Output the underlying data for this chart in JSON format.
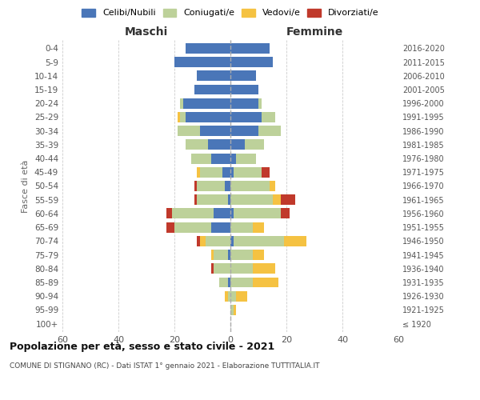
{
  "age_groups": [
    "100+",
    "95-99",
    "90-94",
    "85-89",
    "80-84",
    "75-79",
    "70-74",
    "65-69",
    "60-64",
    "55-59",
    "50-54",
    "45-49",
    "40-44",
    "35-39",
    "30-34",
    "25-29",
    "20-24",
    "15-19",
    "10-14",
    "5-9",
    "0-4"
  ],
  "birth_years": [
    "≤ 1920",
    "1921-1925",
    "1926-1930",
    "1931-1935",
    "1936-1940",
    "1941-1945",
    "1946-1950",
    "1951-1955",
    "1956-1960",
    "1961-1965",
    "1966-1970",
    "1971-1975",
    "1976-1980",
    "1981-1985",
    "1986-1990",
    "1991-1995",
    "1996-2000",
    "2001-2005",
    "2006-2010",
    "2011-2015",
    "2016-2020"
  ],
  "title": "Popolazione per età, sesso e stato civile - 2021",
  "subtitle": "COMUNE DI STIGNANO (RC) - Dati ISTAT 1° gennaio 2021 - Elaborazione TUTTITALIA.IT",
  "xlabel_left": "Maschi",
  "xlabel_right": "Femmine",
  "ylabel": "Fasce di età",
  "xlim": 60,
  "color_celibi": "#4a76b8",
  "color_coniugati": "#bdd19a",
  "color_vedovi": "#f5c242",
  "color_divorziati": "#c0392b",
  "legend_labels": [
    "Celibi/Nubili",
    "Coniugati/e",
    "Vedovi/e",
    "Divorziati/e"
  ],
  "maschi_celibi": [
    0,
    0,
    0,
    1,
    0,
    1,
    0,
    7,
    6,
    1,
    2,
    3,
    7,
    8,
    11,
    16,
    17,
    13,
    12,
    20,
    16
  ],
  "maschi_coniugati": [
    0,
    0,
    1,
    3,
    6,
    5,
    9,
    13,
    15,
    11,
    10,
    8,
    7,
    8,
    8,
    2,
    1,
    0,
    0,
    0,
    0
  ],
  "maschi_vedovi": [
    0,
    0,
    1,
    0,
    0,
    1,
    2,
    0,
    0,
    0,
    0,
    1,
    0,
    0,
    0,
    1,
    0,
    0,
    0,
    0,
    0
  ],
  "maschi_divorziati": [
    0,
    0,
    0,
    0,
    1,
    0,
    1,
    3,
    2,
    1,
    1,
    0,
    0,
    0,
    0,
    0,
    0,
    0,
    0,
    0,
    0
  ],
  "femmine_celibi": [
    0,
    0,
    0,
    0,
    0,
    0,
    1,
    0,
    1,
    0,
    0,
    1,
    2,
    5,
    10,
    11,
    10,
    10,
    9,
    15,
    14
  ],
  "femmine_coniugati": [
    0,
    1,
    2,
    8,
    8,
    8,
    18,
    8,
    17,
    15,
    14,
    10,
    7,
    7,
    8,
    5,
    1,
    0,
    0,
    0,
    0
  ],
  "femmine_vedovi": [
    0,
    1,
    4,
    9,
    8,
    4,
    8,
    4,
    0,
    3,
    2,
    0,
    0,
    0,
    0,
    0,
    0,
    0,
    0,
    0,
    0
  ],
  "femmine_divorziati": [
    0,
    0,
    0,
    0,
    0,
    0,
    0,
    0,
    3,
    5,
    0,
    3,
    0,
    0,
    0,
    0,
    0,
    0,
    0,
    0,
    0
  ]
}
